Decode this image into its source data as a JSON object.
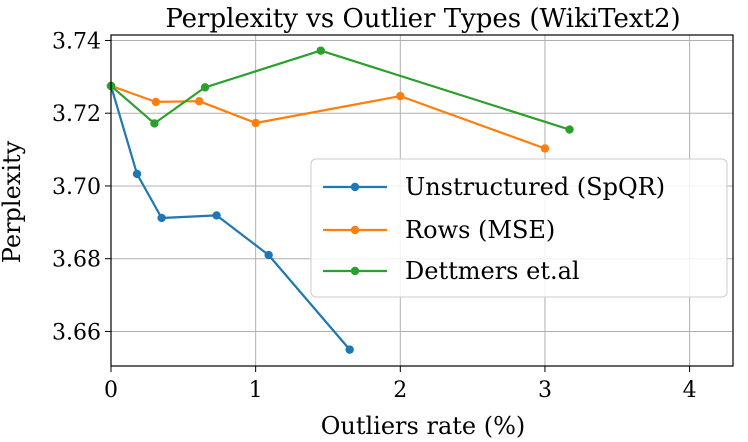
{
  "chart_data": {
    "type": "line",
    "title": "Perplexity vs Outlier Types (WikiText2)",
    "xlabel": "Outliers rate (%)",
    "ylabel": "Perplexity",
    "xlim": [
      0,
      4.3
    ],
    "ylim": [
      3.6505,
      3.7415
    ],
    "xticks": [
      0,
      1,
      2,
      3,
      4
    ],
    "xtick_labels": [
      "0",
      "1",
      "2",
      "3",
      "4"
    ],
    "yticks": [
      3.66,
      3.68,
      3.7,
      3.72,
      3.74
    ],
    "ytick_labels": [
      "3.66",
      "3.68",
      "3.70",
      "3.72",
      "3.74"
    ],
    "grid": true,
    "legend_position": "center-right",
    "series": [
      {
        "name": "Unstructured (SpQR)",
        "color": "#1f77b4",
        "x": [
          0,
          0.18,
          0.35,
          0.73,
          1.09,
          1.65
        ],
        "y": [
          3.7275,
          3.7033,
          3.6912,
          3.6919,
          3.681,
          3.655
        ]
      },
      {
        "name": "Rows (MSE)",
        "color": "#ff7f0e",
        "x": [
          0,
          0.31,
          0.61,
          1.0,
          2.0,
          3.0
        ],
        "y": [
          3.7275,
          3.7231,
          3.7233,
          3.7173,
          3.7247,
          3.7103
        ]
      },
      {
        "name": "Dettmers et.al",
        "color": "#2ca02c",
        "x": [
          0,
          0.3,
          0.65,
          1.45,
          3.17
        ],
        "y": [
          3.7275,
          3.7172,
          3.7271,
          3.7372,
          3.7155
        ]
      }
    ]
  }
}
